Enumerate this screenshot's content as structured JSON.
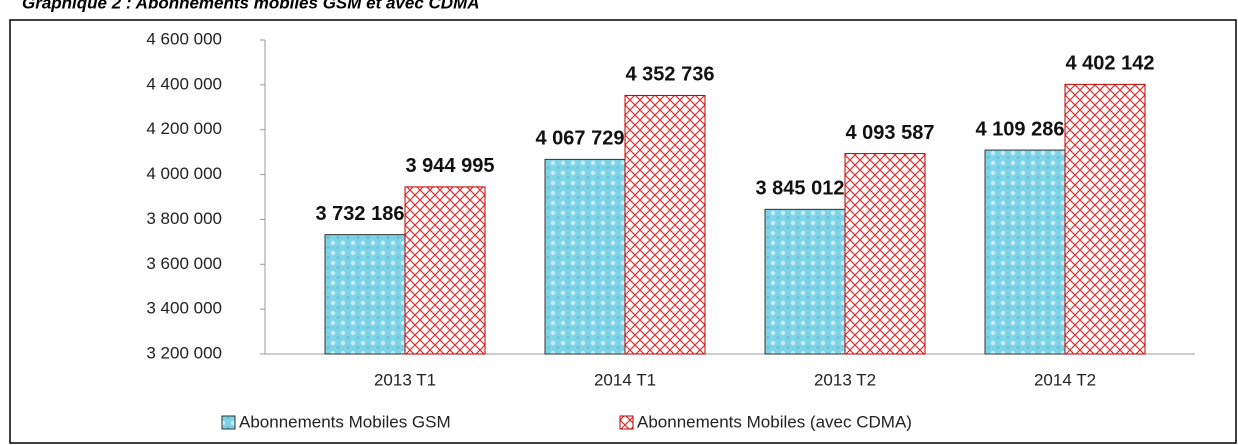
{
  "chart_data": {
    "type": "bar",
    "title": "Graphique 2 : Abonnements mobiles GSM et avec CDMA",
    "categories": [
      "2013 T1",
      "2014 T1",
      "2013 T2",
      "2014 T2"
    ],
    "series": [
      {
        "name": "Abonnements Mobiles GSM",
        "color": "#7fd3e6",
        "values": [
          3732186,
          4067729,
          3845012,
          4109286
        ],
        "value_labels": [
          "3 732 186",
          "4 067 729",
          "3 845 012",
          "4 109 286"
        ]
      },
      {
        "name": "Abonnements Mobiles (avec CDMA)",
        "color": "#e03030",
        "values": [
          3944995,
          4352736,
          4093587,
          4402142
        ],
        "value_labels": [
          "3 944 995",
          "4 352 736",
          "4 093 587",
          "4 402 142"
        ]
      }
    ],
    "ylim": [
      3200000,
      4600000
    ],
    "yticks": [
      {
        "value": 3200000,
        "label": "3 200 000"
      },
      {
        "value": 3400000,
        "label": "3 400 000"
      },
      {
        "value": 3600000,
        "label": "3 600 000"
      },
      {
        "value": 3800000,
        "label": "3 800 000"
      },
      {
        "value": 4000000,
        "label": "4 000 000"
      },
      {
        "value": 4200000,
        "label": "4 200 000"
      },
      {
        "value": 4400000,
        "label": "4 400 000"
      },
      {
        "value": 4600000,
        "label": "4 600 000"
      }
    ],
    "legend": "bottom"
  }
}
